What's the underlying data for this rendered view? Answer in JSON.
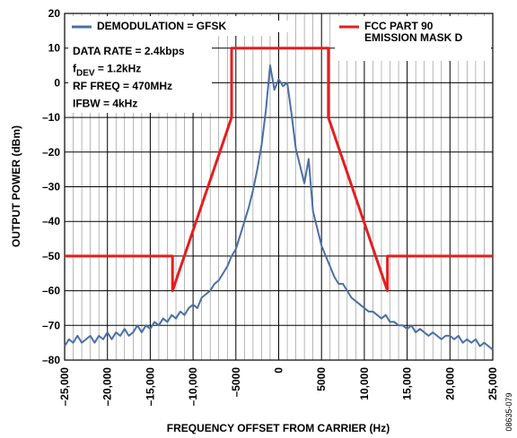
{
  "chart_data": {
    "type": "line",
    "xlabel": "FREQUENCY OFFSET FROM CARRIER (Hz)",
    "ylabel": "OUTPUT POWER (dBm)",
    "figure_code": "08635-079",
    "annotations": [
      "DATA RATE = 2.4kbps",
      {
        "text": "f",
        "sub": "DEV",
        "rest": " = 1.2kHz"
      },
      "RF FREQ = 470MHz",
      "IFBW = 4kHz"
    ],
    "xlim": [
      -25000,
      25000
    ],
    "ylim": [
      -80,
      20
    ],
    "xticks": [
      {
        "value": -25000,
        "label": "–25,000"
      },
      {
        "value": -20000,
        "label": "–20,000"
      },
      {
        "value": -15000,
        "label": "–15,000"
      },
      {
        "value": -10000,
        "label": "–10,000"
      },
      {
        "value": -5000,
        "label": "–5000"
      },
      0,
      5000,
      {
        "value": 10000,
        "label": "10,000"
      },
      {
        "value": 15000,
        "label": "15,000"
      },
      {
        "value": 20000,
        "label": "20,000"
      },
      {
        "value": 25000,
        "label": "25,000"
      }
    ],
    "xminorticks": [
      -24000,
      -23000,
      -22000,
      -21000,
      -19000,
      -18000,
      -17000,
      -16000,
      -14000,
      -13000,
      -12000,
      -11000,
      -9000,
      -8000,
      -7000,
      -6000,
      -4000,
      -3000,
      -2000,
      -1000,
      1000,
      2000,
      3000,
      4000,
      6000,
      7000,
      8000,
      9000,
      11000,
      12000,
      13000,
      14000,
      16000,
      17000,
      18000,
      19000,
      21000,
      22000,
      23000,
      24000
    ],
    "yticks": [
      20,
      10,
      0,
      {
        "value": -10,
        "label": "–10"
      },
      {
        "value": -20,
        "label": "–20"
      },
      {
        "value": -30,
        "label": "–30"
      },
      {
        "value": -40,
        "label": "–40"
      },
      {
        "value": -50,
        "label": "–50"
      },
      {
        "value": -60,
        "label": "–60"
      },
      {
        "value": -70,
        "label": "–70"
      },
      {
        "value": -80,
        "label": "–80"
      }
    ],
    "grid": true,
    "series": [
      {
        "name": "DEMODULATION = GFSK",
        "color": "#4a6fa5",
        "x": [
          -25000,
          -24500,
          -24000,
          -23500,
          -23000,
          -22500,
          -22000,
          -21500,
          -21000,
          -20500,
          -20000,
          -19500,
          -19000,
          -18500,
          -18000,
          -17500,
          -17000,
          -16500,
          -16000,
          -15500,
          -15000,
          -14500,
          -14000,
          -13500,
          -13000,
          -12500,
          -12000,
          -11500,
          -11000,
          -10500,
          -10000,
          -9500,
          -9000,
          -8500,
          -8000,
          -7500,
          -7000,
          -6500,
          -6000,
          -5500,
          -5000,
          -4500,
          -4000,
          -3500,
          -3000,
          -2500,
          -2000,
          -1500,
          -1000,
          -500,
          0,
          500,
          1000,
          1500,
          2000,
          2500,
          3000,
          3500,
          4000,
          4500,
          5000,
          5500,
          6000,
          6500,
          7000,
          7500,
          8000,
          8500,
          9000,
          9500,
          10000,
          10500,
          11000,
          11500,
          12000,
          12500,
          13000,
          13500,
          14000,
          14500,
          15000,
          15500,
          16000,
          16500,
          17000,
          17500,
          18000,
          18500,
          19000,
          19500,
          20000,
          20500,
          21000,
          21500,
          22000,
          22500,
          23000,
          23500,
          24000,
          24500,
          25000
        ],
        "values": [
          -76,
          -74,
          -75,
          -73,
          -75,
          -74,
          -73,
          -75,
          -73,
          -74,
          -72,
          -74,
          -72,
          -73,
          -71,
          -73,
          -72,
          -70,
          -72,
          -70,
          -71,
          -69,
          -70,
          -68,
          -69,
          -67,
          -68,
          -66,
          -67,
          -65,
          -64,
          -65,
          -62,
          -61,
          -60,
          -58,
          -57,
          -55,
          -53,
          -50,
          -48,
          -44,
          -40,
          -36,
          -31,
          -25,
          -18,
          -8,
          5,
          -2,
          1,
          -1,
          0,
          -9,
          -19,
          -24,
          -29,
          -22,
          -37,
          -42,
          -47,
          -50,
          -53,
          -56,
          -58,
          -58,
          -60,
          -62,
          -63,
          -64,
          -65,
          -66,
          -66,
          -67,
          -68,
          -67,
          -69,
          -69,
          -70,
          -70,
          -71,
          -70,
          -72,
          -71,
          -72,
          -73,
          -72,
          -73,
          -74,
          -73,
          -73,
          -74,
          -73,
          -75,
          -74,
          -75,
          -74,
          -76,
          -75,
          -76,
          -77
        ]
      },
      {
        "name": "FCC PART 90 EMISSION MASK D",
        "color": "#e41e1e",
        "x": [
          -25000,
          -12400,
          -12400,
          -5500,
          -5500,
          5800,
          5800,
          12700,
          12700,
          25000
        ],
        "values": [
          -50,
          -50,
          -60,
          -10,
          10,
          10,
          -10,
          -60,
          -50,
          -50
        ]
      }
    ]
  }
}
